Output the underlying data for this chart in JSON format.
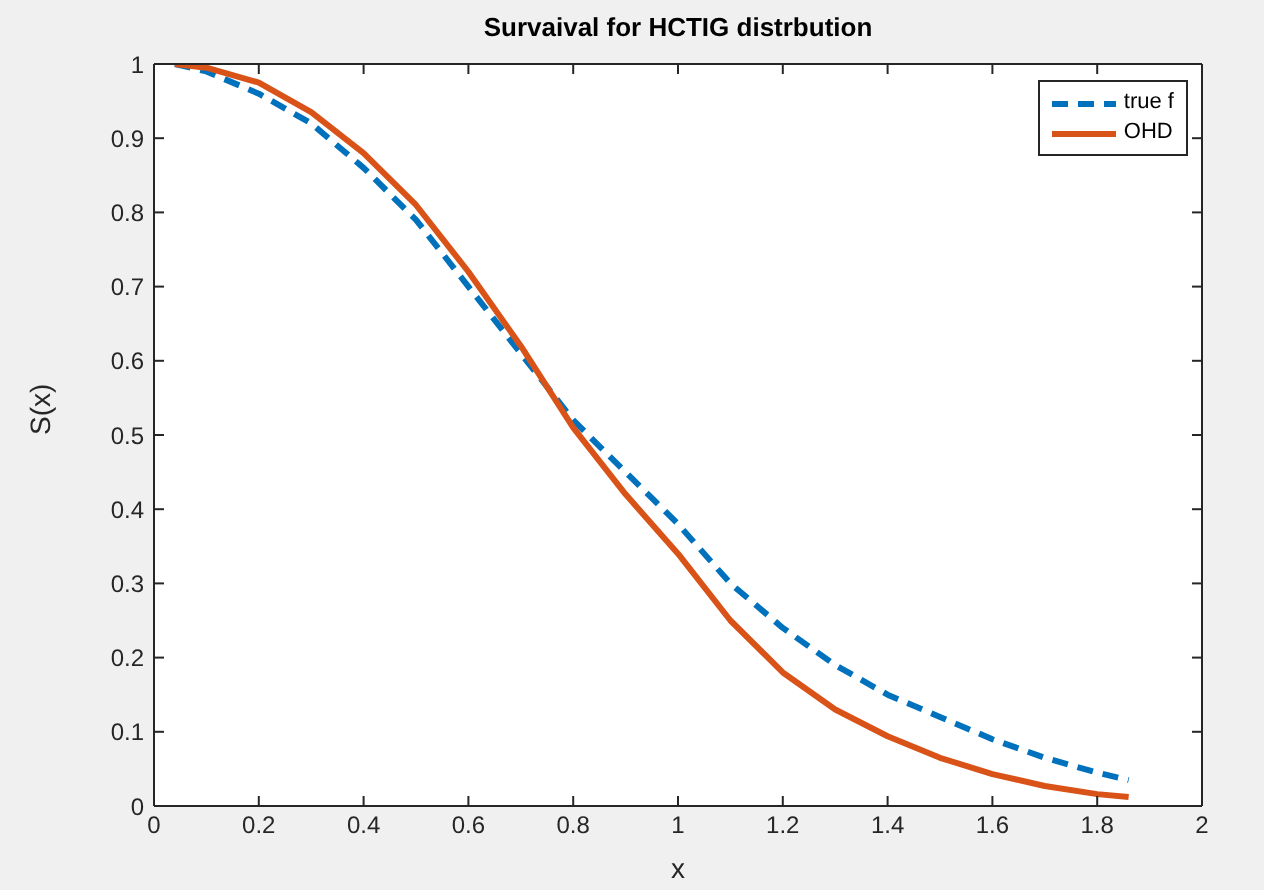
{
  "chart_data": {
    "type": "line",
    "title": "Survaival for HCTIG distrbution",
    "xlabel": "x",
    "ylabel": "S(x)",
    "x": [
      0.04,
      0.1,
      0.2,
      0.3,
      0.4,
      0.5,
      0.6,
      0.7,
      0.8,
      0.9,
      1.0,
      1.1,
      1.2,
      1.3,
      1.4,
      1.5,
      1.6,
      1.7,
      1.8,
      1.86
    ],
    "series": [
      {
        "name": "true f",
        "color": "#0072bd",
        "line_style": "dashed",
        "values": [
          1.0,
          0.99,
          0.96,
          0.92,
          0.86,
          0.79,
          0.7,
          0.61,
          0.52,
          0.45,
          0.38,
          0.3,
          0.24,
          0.19,
          0.15,
          0.12,
          0.09,
          0.065,
          0.045,
          0.035
        ]
      },
      {
        "name": "OHD",
        "color": "#d95319",
        "line_style": "solid",
        "values": [
          1.0,
          0.995,
          0.975,
          0.935,
          0.88,
          0.81,
          0.72,
          0.62,
          0.51,
          0.42,
          0.34,
          0.25,
          0.18,
          0.13,
          0.094,
          0.065,
          0.043,
          0.027,
          0.016,
          0.012
        ]
      }
    ],
    "xlim": [
      0,
      2
    ],
    "xticks": [
      0,
      0.2,
      0.4,
      0.6,
      0.8,
      1,
      1.2,
      1.4,
      1.6,
      1.8,
      2
    ],
    "ylim": [
      0,
      1
    ],
    "yticks": [
      0,
      0.1,
      0.2,
      0.3,
      0.4,
      0.5,
      0.6,
      0.7,
      0.8,
      0.9,
      1
    ],
    "grid": false,
    "legend": "top right",
    "marker": "none"
  }
}
